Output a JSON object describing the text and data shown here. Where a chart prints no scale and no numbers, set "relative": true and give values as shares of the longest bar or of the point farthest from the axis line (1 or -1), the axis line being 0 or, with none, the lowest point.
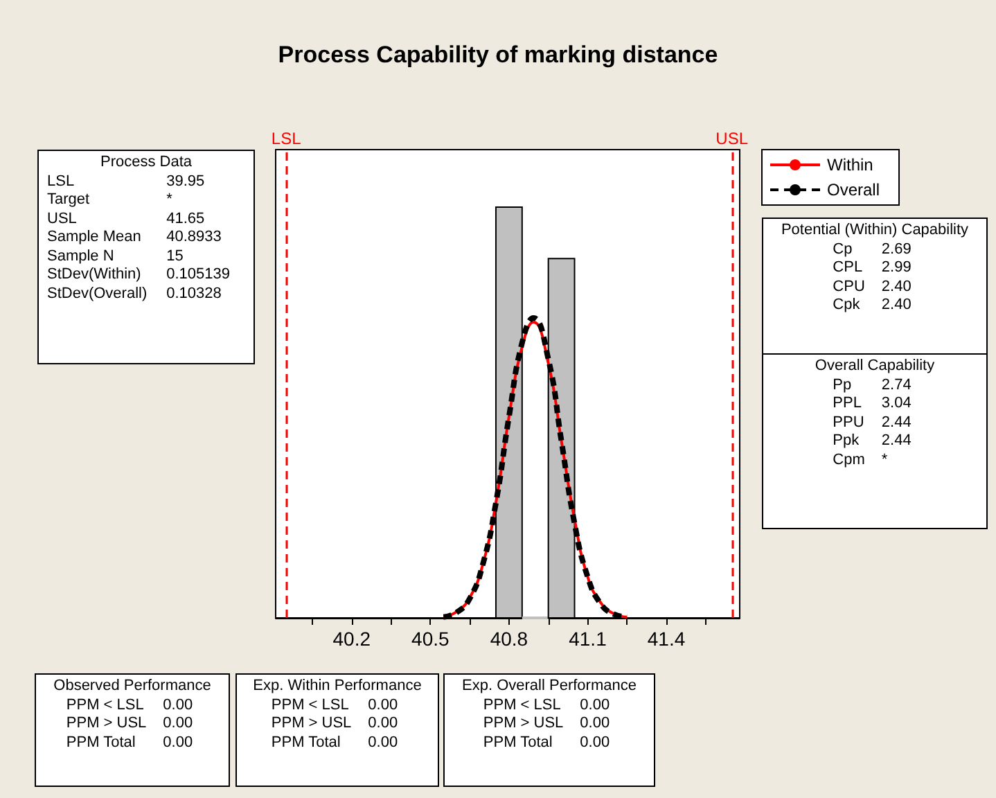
{
  "chart_data": {
    "type": "histogram",
    "title": "Process Capability of marking distance",
    "relative": true,
    "bins": [
      40.75,
      40.85,
      40.95,
      41.05
    ],
    "values": [
      1,
      0,
      0.875
    ],
    "color": "#c0c0c0",
    "series": [
      {
        "name": "Within",
        "type": "line",
        "color": "#ff0000",
        "line_style": "solid",
        "x": [
          40.55,
          40.6,
          40.65,
          40.7,
          40.75,
          40.8,
          40.85,
          40.8933,
          40.95,
          41.0,
          41.05,
          41.1,
          41.15,
          41.2,
          41.25
        ],
        "values": [
          0.003,
          0.015,
          0.049,
          0.13,
          0.28,
          0.49,
          0.66,
          0.72,
          0.62,
          0.43,
          0.24,
          0.1,
          0.037,
          0.01,
          0.002
        ]
      },
      {
        "name": "Overall",
        "type": "line",
        "color": "#000000",
        "line_style": "dashed",
        "x": [
          40.55,
          40.6,
          40.65,
          40.7,
          40.75,
          40.8,
          40.85,
          40.8933,
          40.95,
          41.0,
          41.05,
          41.1,
          41.15,
          41.2,
          41.25
        ],
        "values": [
          0.002,
          0.013,
          0.047,
          0.13,
          0.28,
          0.49,
          0.67,
          0.73,
          0.63,
          0.43,
          0.23,
          0.1,
          0.034,
          0.009,
          0.002
        ]
      }
    ],
    "xlim": [
      39.91,
      41.68
    ],
    "xticks": [
      {
        "value": 40.05,
        "label": null
      },
      40.2,
      {
        "value": 40.35,
        "label": null
      },
      40.5,
      {
        "value": 40.65,
        "label": null
      },
      40.8,
      {
        "value": 40.95,
        "label": null
      },
      41.1,
      {
        "value": 41.25,
        "label": null
      },
      41.4,
      {
        "value": 41.55,
        "label": null
      }
    ],
    "ref_lines": [
      {
        "axis": "x",
        "value": 39.95,
        "label": "LSL",
        "color": "#ff0000",
        "line_style": "dashed"
      },
      {
        "axis": "x",
        "value": 41.65,
        "label": "USL",
        "color": "#ff0000",
        "line_style": "dashed"
      }
    ],
    "legend": "top right",
    "grid": false,
    "annotations": [
      "Process Data\nLSL\t39.95\nTarget\t*\nUSL\t41.65\nSample Mean\t40.8933\nSample N\t15\nStDev(Within)\t0.105139\nStDev(Overall)\t0.10328",
      "Potential (Within) Capability\nCp\t2.69\nCPL\t2.99\nCPU\t2.40\nCpk\t2.40",
      "Overall Capability\nPp\t2.74\nPPL\t3.04\nPPU\t2.44\nPpk\t2.44\nCpm\t*",
      "Observed Performance\nPPM < LSL\t0.00\nPPM > USL\t0.00\nPPM Total\t0.00",
      "Exp. Within Performance\nPPM < LSL\t0.00\nPPM > USL\t0.00\nPPM Total\t0.00",
      "Exp. Overall Performance\nPPM < LSL\t0.00\nPPM > USL\t0.00\nPPM Total\t0.00"
    ]
  }
}
